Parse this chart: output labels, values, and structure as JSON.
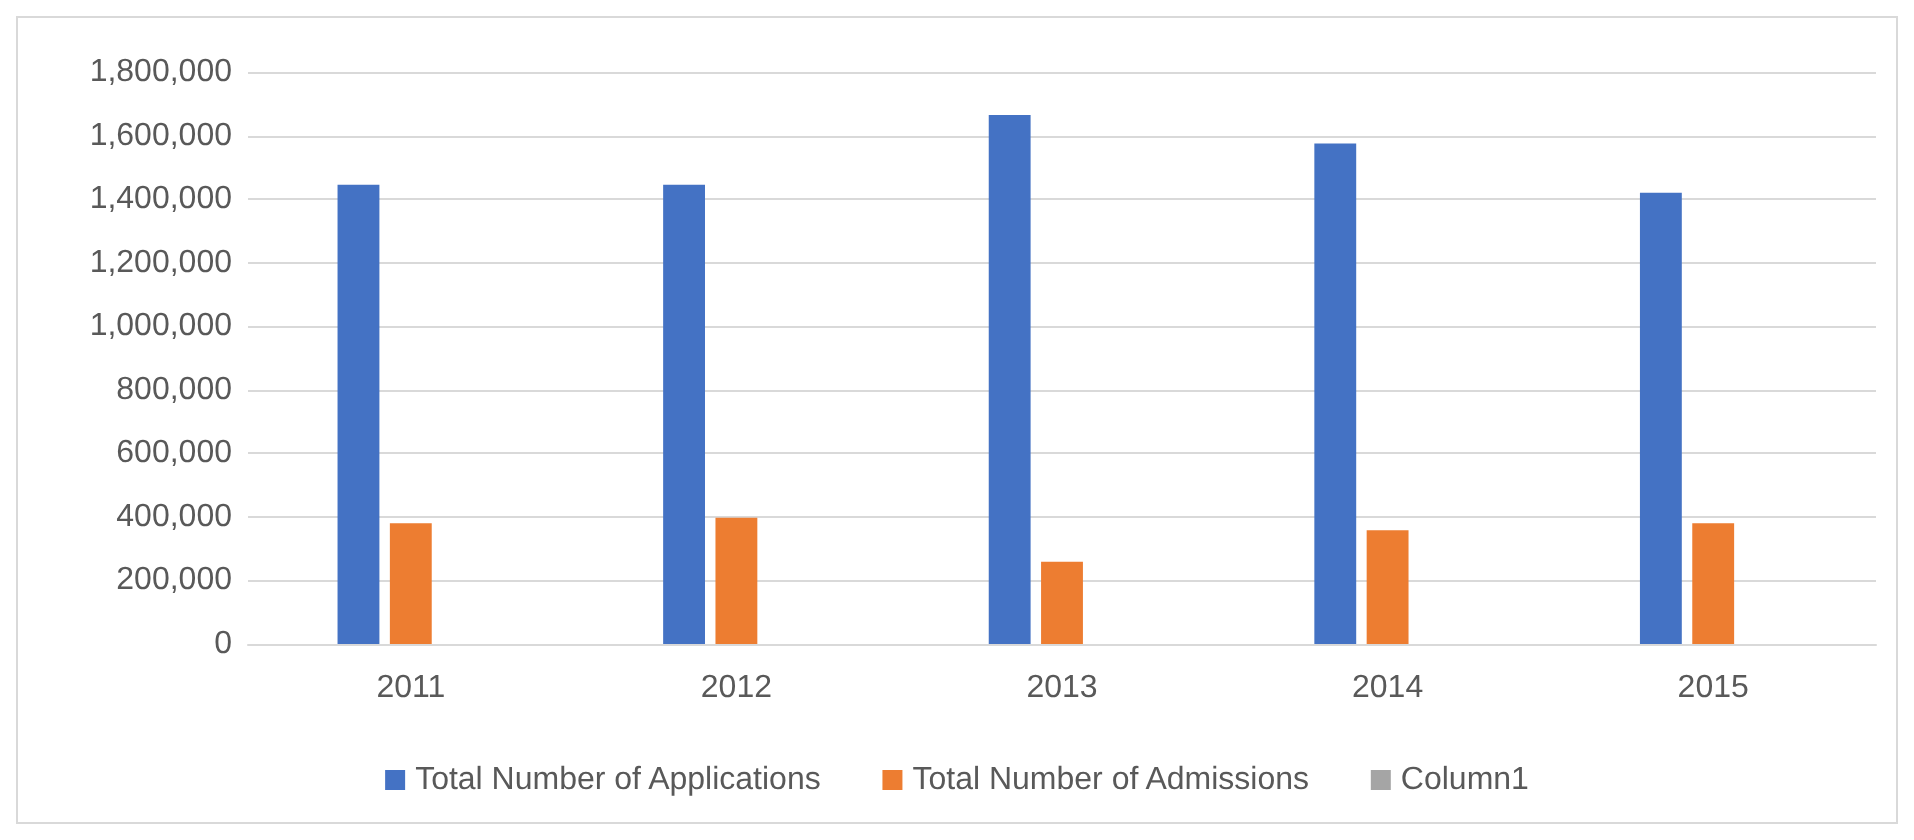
{
  "chart_data": {
    "type": "bar",
    "categories": [
      "2011",
      "2012",
      "2013",
      "2014",
      "2015"
    ],
    "series": [
      {
        "name": "Total Number of Applications",
        "color": "#4472c4",
        "values": [
          1445000,
          1445000,
          1665000,
          1575000,
          1420000
        ]
      },
      {
        "name": "Total Number of Admissions",
        "color": "#ed7d31",
        "values": [
          380000,
          397000,
          259000,
          358000,
          380000
        ]
      },
      {
        "name": "Column1",
        "color": "#a5a5a5",
        "values": [
          null,
          null,
          null,
          null,
          null
        ]
      }
    ],
    "ylim": [
      0,
      1800000
    ],
    "yticks": [
      0,
      {
        "value": 200000,
        "label": "200,000"
      },
      {
        "value": 400000,
        "label": "400,000"
      },
      {
        "value": 600000,
        "label": "600,000"
      },
      {
        "value": 800000,
        "label": "800,000"
      },
      {
        "value": 1000000,
        "label": "1,000,000"
      },
      {
        "value": 1200000,
        "label": "1,200,000"
      },
      {
        "value": 1400000,
        "label": "1,400,000"
      },
      {
        "value": 1600000,
        "label": "1,600,000"
      },
      {
        "value": 1800000,
        "label": "1,800,000"
      }
    ],
    "grid": "y",
    "legend": "bottom"
  }
}
